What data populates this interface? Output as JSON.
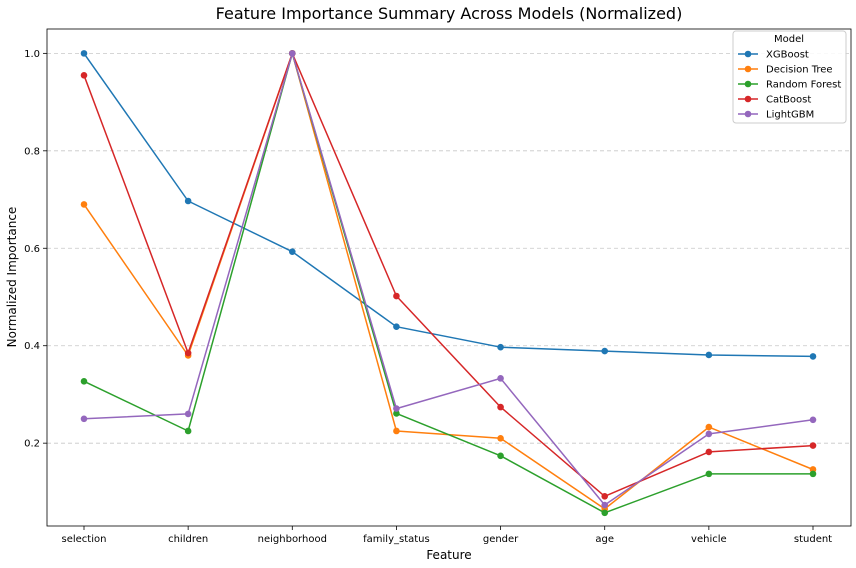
{
  "chart_data": {
    "type": "line",
    "title": "Feature Importance Summary Across Models (Normalized)",
    "xlabel": "Feature",
    "ylabel": "Normalized Importance",
    "categories": [
      "selection",
      "children",
      "neighborhood",
      "family_status",
      "gender",
      "age",
      "vehicle",
      "student"
    ],
    "ylim": [
      0.03,
      1.05
    ],
    "yticks": [
      0.2,
      0.4,
      0.6,
      0.8,
      1.0
    ],
    "ytick_labels": [
      "0.2",
      "0.4",
      "0.6",
      "0.8",
      "1.0"
    ],
    "grid": "horizontal-dashed",
    "legend": {
      "title": "Model",
      "placement": "top-right"
    },
    "series": [
      {
        "name": "XGBoost",
        "color": "#1f77b4",
        "values": [
          1.0,
          0.697,
          0.593,
          0.439,
          0.397,
          0.389,
          0.381,
          0.378
        ]
      },
      {
        "name": "Decision Tree",
        "color": "#ff7f0e",
        "values": [
          0.69,
          0.38,
          1.0,
          0.225,
          0.21,
          0.065,
          0.233,
          0.146
        ]
      },
      {
        "name": "Random Forest",
        "color": "#2ca02c",
        "values": [
          0.327,
          0.225,
          1.0,
          0.261,
          0.174,
          0.057,
          0.137,
          0.137
        ]
      },
      {
        "name": "CatBoost",
        "color": "#d62728",
        "values": [
          0.955,
          0.385,
          1.0,
          0.502,
          0.274,
          0.091,
          0.182,
          0.195
        ]
      },
      {
        "name": "LightGBM",
        "color": "#9467bd",
        "values": [
          0.25,
          0.26,
          1.0,
          0.271,
          0.333,
          0.073,
          0.219,
          0.248
        ]
      }
    ]
  }
}
